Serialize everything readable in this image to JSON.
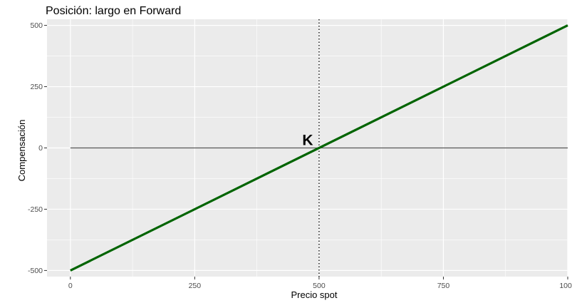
{
  "chart_data": {
    "type": "line",
    "title": "Posición: largo en Forward",
    "xlabel": "Precio spot",
    "ylabel": "Compensación",
    "xlim": [
      -47,
      1000
    ],
    "ylim": [
      -525,
      525
    ],
    "x_ticks": [
      0,
      250,
      500,
      750,
      1000
    ],
    "y_ticks": [
      -500,
      -250,
      0,
      250,
      500
    ],
    "x_tick_labels": [
      "0",
      "250",
      "500",
      "750",
      "1000"
    ],
    "y_tick_labels": [
      "-500",
      "-250",
      "0",
      "250",
      "500"
    ],
    "grid": true,
    "series": [
      {
        "x": [
          0,
          1000
        ],
        "y": [
          -500,
          500
        ],
        "color": "#006400"
      }
    ],
    "reference_lines": {
      "horizontal": {
        "y": 0,
        "x_from": 0,
        "x_to": 1000,
        "color": "#555555"
      },
      "vertical": {
        "x": 500,
        "style": "dotted",
        "color": "#000000"
      }
    },
    "annotations": [
      {
        "text": "K",
        "x": 500,
        "y": 0
      }
    ],
    "colors": {
      "panel": "#ebebeb",
      "grid": "#ffffff",
      "line": "#006400"
    }
  }
}
